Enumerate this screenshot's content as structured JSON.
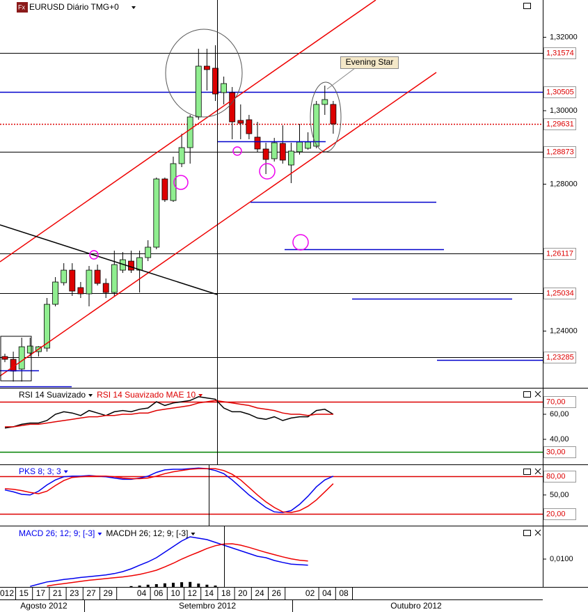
{
  "chart_data": [
    {
      "type": "candlestick",
      "title": "EURUSD Diário TMG+0",
      "annotation": "Evening Star",
      "months": [
        "Agosto 2012",
        "Setembro 2012",
        "Outubro 2012"
      ],
      "categories": [
        "012",
        null,
        "15",
        null,
        "17",
        null,
        "21",
        null,
        "23",
        null,
        "27",
        null,
        "29",
        null,
        null,
        null,
        "04",
        null,
        "06",
        null,
        "10",
        null,
        "12",
        null,
        "14",
        null,
        "18",
        null,
        "20",
        null,
        "24",
        null,
        "26",
        null,
        null,
        null,
        "02",
        null,
        "04",
        null,
        "08"
      ],
      "ohlc": [
        [
          1.23307,
          1.23383,
          1.23155,
          1.23231
        ],
        [
          1.23231,
          1.2344,
          1.22625,
          1.22909
        ],
        [
          1.22966,
          1.23819,
          1.22625,
          1.23573
        ],
        [
          1.23402,
          1.23819,
          1.23307,
          1.23592
        ],
        [
          1.2344,
          1.23592,
          1.23307,
          1.23573
        ],
        [
          1.23535,
          1.249,
          1.2344,
          1.24729
        ],
        [
          1.24729,
          1.25469,
          1.24672,
          1.25336
        ],
        [
          1.25317,
          1.25848,
          1.25241,
          1.25658
        ],
        [
          1.25658,
          1.25848,
          1.24957,
          1.25089
        ],
        [
          1.25184,
          1.25336,
          1.249,
          1.25014
        ],
        [
          1.25014,
          1.25772,
          1.24672,
          1.25658
        ],
        [
          1.25658,
          1.2581,
          1.25241,
          1.25298
        ],
        [
          1.25298,
          1.25431,
          1.249,
          1.25051
        ],
        [
          1.25051,
          1.26189,
          1.24957,
          1.2581
        ],
        [
          1.25658,
          1.26151,
          1.25582,
          1.25943
        ],
        [
          1.25905,
          1.26189,
          1.25582,
          1.25658
        ],
        [
          1.25658,
          1.26189,
          1.25051,
          1.26
        ],
        [
          1.26,
          1.26473,
          1.25905,
          1.26284
        ],
        [
          1.26284,
          1.2818,
          1.26227,
          1.28142
        ],
        [
          1.28142,
          1.2818,
          1.27516,
          1.27573
        ],
        [
          1.27554,
          1.28749,
          1.27516,
          1.28559
        ],
        [
          1.28559,
          1.29374,
          1.28464,
          1.28995
        ],
        [
          1.28995,
          1.29886,
          1.28559,
          1.29829
        ],
        [
          1.29829,
          1.31687,
          1.29754,
          1.31213
        ],
        [
          1.31213,
          1.31687,
          1.3055,
          1.31119
        ],
        [
          1.31157,
          1.31782,
          1.30265,
          1.30455
        ],
        [
          1.30493,
          1.30929,
          1.30171,
          1.30739
        ],
        [
          1.30493,
          1.30645,
          1.29223,
          1.29697
        ],
        [
          1.29735,
          1.30171,
          1.29223,
          1.29659
        ],
        [
          1.29754,
          1.29886,
          1.29223,
          1.29374
        ],
        [
          1.2928,
          1.29697,
          1.28881,
          1.28957
        ],
        [
          1.28957,
          1.29128,
          1.28275,
          1.28673
        ],
        [
          1.28692,
          1.2926,
          1.28616,
          1.29128
        ],
        [
          1.29109,
          1.29602,
          1.28559,
          1.28654
        ],
        [
          1.28521,
          1.29128,
          1.28028,
          1.289
        ],
        [
          1.28881,
          1.2964,
          1.28806,
          1.29147
        ],
        [
          1.28976,
          1.29412,
          1.28938,
          1.29147
        ],
        [
          1.29033,
          1.30265,
          1.28976,
          1.30171
        ],
        [
          1.30171,
          1.30683,
          1.29886,
          1.30303
        ],
        [
          1.30171,
          1.30265,
          1.29374,
          1.2964
        ],
        null
      ],
      "up_color": "#90ee90",
      "down_color": "#dd0000",
      "ylim": [
        1.22455,
        1.33014
      ],
      "yticks": [
        {
          "value": 1.32,
          "label": "1,32000"
        },
        {
          "value": 1.3,
          "label": "1,30000"
        },
        {
          "value": 1.28,
          "label": "1,28000"
        },
        {
          "value": 1.24,
          "label": "1,24000"
        }
      ],
      "levels": [
        {
          "value": 1.31574,
          "label": "1,31574",
          "color": "#000000",
          "style": "solid"
        },
        {
          "value": 1.30505,
          "label": "1,30505",
          "color": "#0000cc",
          "style": "solid"
        },
        {
          "value": 1.29631,
          "label": "1,29631",
          "color": "#dd0000",
          "style": "dotted"
        },
        {
          "value": 1.28873,
          "label": "1,28873",
          "color": "#000000",
          "style": "solid"
        },
        {
          "value": 1.26117,
          "label": "1,26117",
          "color": "#000000",
          "style": "solid"
        },
        {
          "value": 1.25034,
          "label": "1,25034",
          "color": "#000000",
          "style": "solid"
        },
        {
          "value": 1.23285,
          "label": "1,23285",
          "color": "#000000",
          "style": "solid"
        }
      ]
    },
    {
      "type": "line",
      "series": [
        {
          "name": "RSI 14 Suavizado",
          "color": "#000000",
          "values": [
            49,
            50,
            52,
            53,
            53,
            55,
            60,
            62,
            61,
            59,
            63,
            61,
            59,
            62,
            63,
            62,
            64,
            65,
            70,
            67,
            69,
            70,
            71,
            74,
            73,
            72,
            65,
            62,
            62,
            60,
            57,
            56,
            58,
            55,
            57,
            58,
            58,
            63,
            64,
            60,
            null
          ]
        },
        {
          "name": "RSI 14 Suavizado MAE 10",
          "color": "#dd0000",
          "values": [
            50,
            50,
            51,
            52,
            52,
            53,
            54,
            55,
            56,
            57,
            58,
            58,
            59,
            59,
            60,
            60,
            61,
            61,
            63,
            64,
            65,
            66,
            67,
            69,
            70,
            71,
            70,
            69,
            68,
            67,
            65,
            64,
            63,
            61,
            60,
            60,
            59,
            60,
            60,
            60,
            null
          ]
        }
      ],
      "ylim": [
        20,
        80
      ],
      "yticks": [
        {
          "value": 60,
          "label": "60,00"
        },
        {
          "value": 40,
          "label": "40,00"
        }
      ],
      "levels": [
        {
          "value": 70,
          "label": "70,00",
          "color": "#dd0000"
        },
        {
          "value": 30,
          "label": "30,00",
          "color": "#008000"
        }
      ]
    },
    {
      "type": "line",
      "series": [
        {
          "name": "PKS 8; 3; 3",
          "color": "#0000ee",
          "values": [
            58,
            55,
            51,
            50,
            56,
            66,
            74,
            79,
            80,
            80,
            81,
            80,
            79,
            77,
            75,
            75,
            77,
            80,
            86,
            90,
            91,
            91,
            92,
            93,
            92,
            89,
            84,
            74,
            62,
            50,
            40,
            30,
            23,
            22,
            25,
            35,
            48,
            63,
            74,
            80,
            null
          ]
        },
        {
          "color": "#ee0000",
          "values": [
            60,
            59,
            57,
            54,
            52,
            56,
            65,
            73,
            78,
            79,
            80,
            80,
            80,
            79,
            77,
            76,
            76,
            77,
            80,
            84,
            87,
            89,
            91,
            92,
            92,
            92,
            89,
            83,
            74,
            62,
            50,
            39,
            30,
            23,
            22,
            25,
            32,
            42,
            55,
            68,
            null
          ]
        }
      ],
      "ylim": [
        1,
        97
      ],
      "yticks": [
        {
          "value": 50,
          "label": "50,00"
        }
      ],
      "levels": [
        {
          "value": 80,
          "label": "80,00",
          "color": "#dd0000"
        },
        {
          "value": 20,
          "label": "20,00",
          "color": "#dd0000"
        }
      ]
    },
    {
      "type": "line",
      "series": [
        {
          "name": "MACD 26; 12; 9; [-3]",
          "color": "#0000ee",
          "values": [
            null,
            null,
            null,
            0.0002,
            0.001,
            0.0018,
            0.0022,
            0.0027,
            0.003,
            0.0034,
            0.0037,
            0.004,
            0.0043,
            0.0048,
            0.0055,
            0.0065,
            0.0078,
            0.009,
            0.0105,
            0.0125,
            0.0145,
            0.0165,
            0.018,
            0.0175,
            0.017,
            0.016,
            0.015,
            0.014,
            0.013,
            0.012,
            0.011,
            0.0105,
            0.0095,
            0.0088,
            0.0082,
            0.008,
            0.0078,
            null,
            null,
            null,
            null
          ]
        },
        {
          "color": "#ee0000",
          "values": [
            null,
            null,
            null,
            null,
            null,
            0.0003,
            0.0008,
            0.0012,
            0.0016,
            0.002,
            0.0024,
            0.0027,
            0.003,
            0.0033,
            0.0036,
            0.004,
            0.0045,
            0.0052,
            0.006,
            0.0072,
            0.0085,
            0.01,
            0.0113,
            0.0125,
            0.0138,
            0.0148,
            0.0154,
            0.0155,
            0.015,
            0.0142,
            0.0133,
            0.0124,
            0.0116,
            0.0108,
            0.0101,
            0.0096,
            0.0093,
            null,
            null,
            null,
            null
          ]
        },
        {
          "name": "MACDH 26; 12; 9; [-3]",
          "color": "#000000",
          "kind": "bar",
          "values": [
            null,
            null,
            null,
            null,
            null,
            null,
            null,
            null,
            null,
            null,
            null,
            null,
            null,
            null,
            null,
            0.0003,
            0.0005,
            0.0008,
            0.001,
            0.0013,
            0.0015,
            0.0017,
            0.0018,
            0.0012,
            0.0008,
            0.0005,
            null,
            null,
            null,
            null,
            null,
            null,
            null,
            null,
            null,
            null,
            null,
            null,
            null,
            null,
            null
          ]
        }
      ],
      "ylim": [
        0,
        0.02125
      ],
      "yticks": [
        {
          "value": 0.01,
          "label": "0,0100"
        }
      ]
    }
  ]
}
